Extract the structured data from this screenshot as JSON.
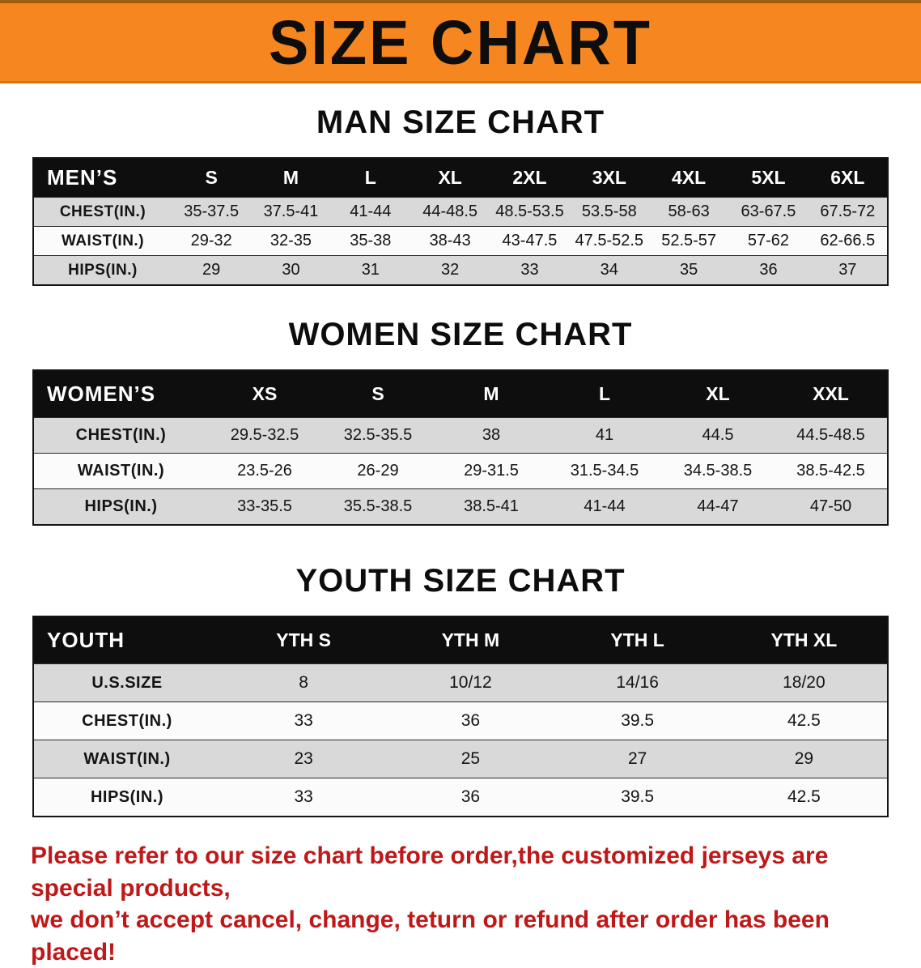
{
  "banner": {
    "title": "SIZE CHART"
  },
  "men": {
    "heading": "MAN SIZE CHART",
    "table": {
      "header": [
        "MEN’S",
        "S",
        "M",
        "L",
        "XL",
        "2XL",
        "3XL",
        "4XL",
        "5XL",
        "6XL"
      ],
      "rows": [
        [
          "CHEST(IN.)",
          "35-37.5",
          "37.5-41",
          "41-44",
          "44-48.5",
          "48.5-53.5",
          "53.5-58",
          "58-63",
          "63-67.5",
          "67.5-72"
        ],
        [
          "WAIST(IN.)",
          "29-32",
          "32-35",
          "35-38",
          "38-43",
          "43-47.5",
          "47.5-52.5",
          "52.5-57",
          "57-62",
          "62-66.5"
        ],
        [
          "HIPS(IN.)",
          "29",
          "30",
          "31",
          "32",
          "33",
          "34",
          "35",
          "36",
          "37"
        ]
      ]
    }
  },
  "women": {
    "heading": "WOMEN SIZE CHART",
    "table": {
      "header": [
        "WOMEN’S",
        "XS",
        "S",
        "M",
        "L",
        "XL",
        "XXL"
      ],
      "rows": [
        [
          "CHEST(IN.)",
          "29.5-32.5",
          "32.5-35.5",
          "38",
          "41",
          "44.5",
          "44.5-48.5"
        ],
        [
          "WAIST(IN.)",
          "23.5-26",
          "26-29",
          "29-31.5",
          "31.5-34.5",
          "34.5-38.5",
          "38.5-42.5"
        ],
        [
          "HIPS(IN.)",
          "33-35.5",
          "35.5-38.5",
          "38.5-41",
          "41-44",
          "44-47",
          "47-50"
        ]
      ]
    }
  },
  "youth": {
    "heading": "YOUTH SIZE CHART",
    "table": {
      "header": [
        "YOUTH",
        "YTH S",
        "YTH M",
        "YTH L",
        "YTH XL"
      ],
      "rows": [
        [
          "U.S.SIZE",
          "8",
          "10/12",
          "14/16",
          "18/20"
        ],
        [
          "CHEST(IN.)",
          "33",
          "36",
          "39.5",
          "42.5"
        ],
        [
          "WAIST(IN.)",
          "23",
          "25",
          "27",
          "29"
        ],
        [
          "HIPS(IN.)",
          "33",
          "36",
          "39.5",
          "42.5"
        ]
      ]
    }
  },
  "footer": {
    "line1": "Please refer to our size chart before order,the customized jerseys are special products,",
    "line2": "we don’t accept cancel, change, teturn or refund after order has been placed!"
  },
  "colors": {
    "banner_orange": "#f6861f",
    "header_black": "#0e0e0e",
    "shaded_row_gray": "#d9d9d9",
    "disclaimer_red": "#c01818"
  }
}
